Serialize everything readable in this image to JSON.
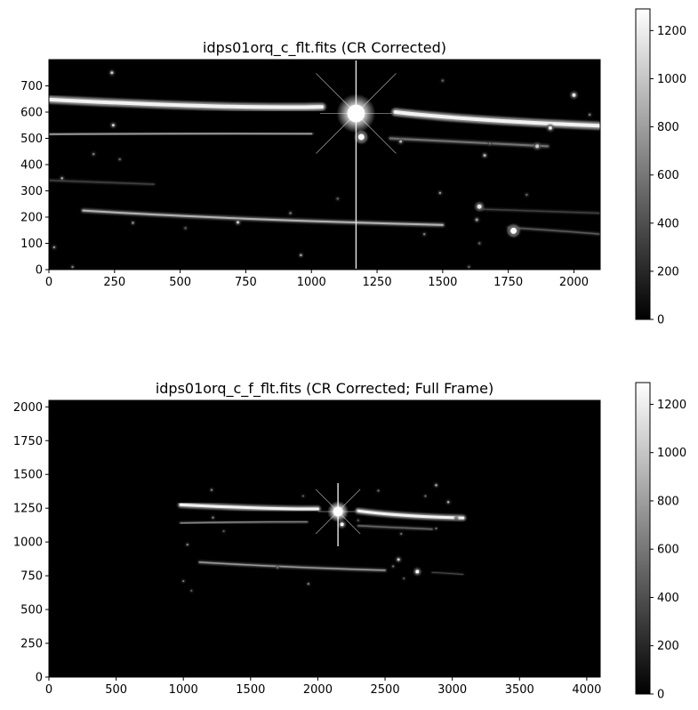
{
  "chart_data": [
    {
      "type": "heatmap",
      "title": "idps01orq_c_flt.fits (CR Corrected)",
      "xlabel": "",
      "ylabel": "",
      "xlim": [
        0,
        2100
      ],
      "ylim": [
        0,
        800
      ],
      "xticks": [
        0,
        250,
        500,
        750,
        1000,
        1250,
        1500,
        1750,
        2000
      ],
      "yticks": [
        0,
        100,
        200,
        300,
        400,
        500,
        600,
        700
      ],
      "colormap": "gray",
      "colorbar": {
        "ticks": [
          0,
          200,
          400,
          600,
          800,
          1000,
          1200
        ],
        "min": 0,
        "max": 1290
      },
      "bright_star": {
        "x": 1170,
        "y": 595
      },
      "streaks": [
        {
          "x1": 0,
          "y1": 648,
          "xm": 700,
          "ym": 612,
          "x2": 1040,
          "y2": 620,
          "i": 0.95,
          "w": 4
        },
        {
          "x1": 1320,
          "y1": 600,
          "xm": 1600,
          "ym": 568,
          "x2": 2100,
          "y2": 548,
          "i": 0.95,
          "w": 4
        },
        {
          "x1": 0,
          "y1": 515,
          "xm": 500,
          "ym": 520,
          "x2": 1000,
          "y2": 518,
          "i": 0.55,
          "w": 2
        },
        {
          "x1": 1300,
          "y1": 500,
          "xm": 1600,
          "ym": 485,
          "x2": 1900,
          "y2": 470,
          "i": 0.45,
          "w": 2
        },
        {
          "x1": 130,
          "y1": 225,
          "xm": 700,
          "ym": 190,
          "x2": 1500,
          "y2": 170,
          "i": 0.7,
          "w": 2
        },
        {
          "x1": 1650,
          "y1": 230,
          "xm": 1900,
          "ym": 222,
          "x2": 2100,
          "y2": 215,
          "i": 0.25,
          "w": 1.5
        },
        {
          "x1": 0,
          "y1": 340,
          "xm": 200,
          "ym": 332,
          "x2": 400,
          "y2": 325,
          "i": 0.25,
          "w": 1.5
        },
        {
          "x1": 1750,
          "y1": 160,
          "xm": 1950,
          "ym": 148,
          "x2": 2100,
          "y2": 135,
          "i": 0.35,
          "w": 1.5
        }
      ],
      "stars": [
        {
          "x": 1770,
          "y": 148,
          "r": 3.5,
          "i": 1.0
        },
        {
          "x": 1640,
          "y": 240,
          "r": 2.5,
          "i": 0.9
        },
        {
          "x": 1190,
          "y": 505,
          "r": 3.5,
          "i": 1.0
        },
        {
          "x": 240,
          "y": 750,
          "r": 1.5,
          "i": 0.8
        },
        {
          "x": 245,
          "y": 550,
          "r": 1.5,
          "i": 0.8
        },
        {
          "x": 2000,
          "y": 665,
          "r": 2,
          "i": 0.9
        },
        {
          "x": 1910,
          "y": 540,
          "r": 2,
          "i": 0.9
        },
        {
          "x": 1860,
          "y": 470,
          "r": 2,
          "i": 0.8
        },
        {
          "x": 1340,
          "y": 488,
          "r": 1.5,
          "i": 0.7
        },
        {
          "x": 1660,
          "y": 435,
          "r": 1.5,
          "i": 0.7
        },
        {
          "x": 720,
          "y": 180,
          "r": 1.5,
          "i": 0.8
        },
        {
          "x": 320,
          "y": 178,
          "r": 1.2,
          "i": 0.6
        },
        {
          "x": 50,
          "y": 348,
          "r": 1.2,
          "i": 0.7
        },
        {
          "x": 20,
          "y": 85,
          "r": 1.2,
          "i": 0.6
        },
        {
          "x": 960,
          "y": 55,
          "r": 1.2,
          "i": 0.7
        },
        {
          "x": 1490,
          "y": 292,
          "r": 1.2,
          "i": 0.6
        },
        {
          "x": 1630,
          "y": 190,
          "r": 1.5,
          "i": 0.6
        },
        {
          "x": 1430,
          "y": 135,
          "r": 1.2,
          "i": 0.5
        },
        {
          "x": 920,
          "y": 215,
          "r": 1.2,
          "i": 0.5
        },
        {
          "x": 1600,
          "y": 10,
          "r": 1.2,
          "i": 0.4
        },
        {
          "x": 1640,
          "y": 100,
          "r": 1.2,
          "i": 0.4
        },
        {
          "x": 170,
          "y": 440,
          "r": 1.2,
          "i": 0.5
        },
        {
          "x": 270,
          "y": 420,
          "r": 1.2,
          "i": 0.4
        },
        {
          "x": 1820,
          "y": 285,
          "r": 1.2,
          "i": 0.4
        },
        {
          "x": 2060,
          "y": 590,
          "r": 1.2,
          "i": 0.5
        },
        {
          "x": 1500,
          "y": 720,
          "r": 1.2,
          "i": 0.4
        },
        {
          "x": 1680,
          "y": 480,
          "r": 1.2,
          "i": 0.5
        },
        {
          "x": 1100,
          "y": 270,
          "r": 1.2,
          "i": 0.4
        },
        {
          "x": 520,
          "y": 158,
          "r": 1.2,
          "i": 0.4
        },
        {
          "x": 90,
          "y": 10,
          "r": 1.2,
          "i": 0.5
        }
      ]
    },
    {
      "type": "heatmap",
      "title": "idps01orq_c_f_flt.fits (CR Corrected; Full Frame)",
      "xlabel": "",
      "ylabel": "",
      "xlim": [
        0,
        4100
      ],
      "ylim": [
        0,
        2048
      ],
      "xticks": [
        0,
        500,
        1000,
        1500,
        2000,
        2500,
        3000,
        3500,
        4000
      ],
      "yticks": [
        0,
        250,
        500,
        750,
        1000,
        1250,
        1500,
        1750,
        2000
      ],
      "colormap": "gray",
      "colorbar": {
        "ticks": [
          0,
          200,
          400,
          600,
          800,
          1000,
          1200
        ],
        "min": 0,
        "max": 1290
      },
      "bright_star": {
        "x": 2150,
        "y": 1225
      },
      "streaks": [
        {
          "x1": 980,
          "y1": 1275,
          "xm": 1700,
          "ym": 1240,
          "x2": 2000,
          "y2": 1245,
          "i": 0.95,
          "w": 3
        },
        {
          "x1": 2300,
          "y1": 1230,
          "xm": 2600,
          "ym": 1190,
          "x2": 3080,
          "y2": 1178,
          "i": 0.95,
          "w": 3
        },
        {
          "x1": 980,
          "y1": 1140,
          "xm": 1500,
          "ym": 1150,
          "x2": 1920,
          "y2": 1150,
          "i": 0.5,
          "w": 1.5
        },
        {
          "x1": 2300,
          "y1": 1120,
          "xm": 2600,
          "ym": 1105,
          "x2": 2850,
          "y2": 1095,
          "i": 0.4,
          "w": 1.5
        },
        {
          "x1": 1120,
          "y1": 850,
          "xm": 1700,
          "ym": 815,
          "x2": 2500,
          "y2": 790,
          "i": 0.6,
          "w": 1.5
        },
        {
          "x1": 2850,
          "y1": 775,
          "xm": 2950,
          "ym": 770,
          "x2": 3080,
          "y2": 760,
          "i": 0.3,
          "w": 1
        }
      ],
      "stars": [
        {
          "x": 2180,
          "y": 1130,
          "r": 2,
          "i": 1.0
        },
        {
          "x": 2740,
          "y": 780,
          "r": 2,
          "i": 1.0
        },
        {
          "x": 2600,
          "y": 870,
          "r": 1.5,
          "i": 0.8
        },
        {
          "x": 2880,
          "y": 1420,
          "r": 1.2,
          "i": 0.7
        },
        {
          "x": 2970,
          "y": 1295,
          "r": 1.2,
          "i": 0.7
        },
        {
          "x": 1210,
          "y": 1385,
          "r": 1,
          "i": 0.6
        },
        {
          "x": 1220,
          "y": 1180,
          "r": 1,
          "i": 0.6
        },
        {
          "x": 1030,
          "y": 980,
          "r": 1,
          "i": 0.6
        },
        {
          "x": 1930,
          "y": 690,
          "r": 1,
          "i": 0.6
        },
        {
          "x": 1700,
          "y": 810,
          "r": 1,
          "i": 0.5
        },
        {
          "x": 2450,
          "y": 1380,
          "r": 1,
          "i": 0.5
        },
        {
          "x": 2620,
          "y": 1060,
          "r": 1,
          "i": 0.5
        },
        {
          "x": 2800,
          "y": 1340,
          "r": 1,
          "i": 0.5
        },
        {
          "x": 3030,
          "y": 1175,
          "r": 1,
          "i": 0.5
        },
        {
          "x": 1000,
          "y": 710,
          "r": 1,
          "i": 0.5
        },
        {
          "x": 1060,
          "y": 640,
          "r": 1,
          "i": 0.4
        },
        {
          "x": 2560,
          "y": 820,
          "r": 1,
          "i": 0.5
        },
        {
          "x": 2640,
          "y": 730,
          "r": 1,
          "i": 0.4
        },
        {
          "x": 2880,
          "y": 1100,
          "r": 1,
          "i": 0.5
        },
        {
          "x": 1300,
          "y": 1080,
          "r": 1,
          "i": 0.4
        },
        {
          "x": 2300,
          "y": 1160,
          "r": 1,
          "i": 0.4
        },
        {
          "x": 1890,
          "y": 1340,
          "r": 1,
          "i": 0.4
        }
      ]
    }
  ]
}
